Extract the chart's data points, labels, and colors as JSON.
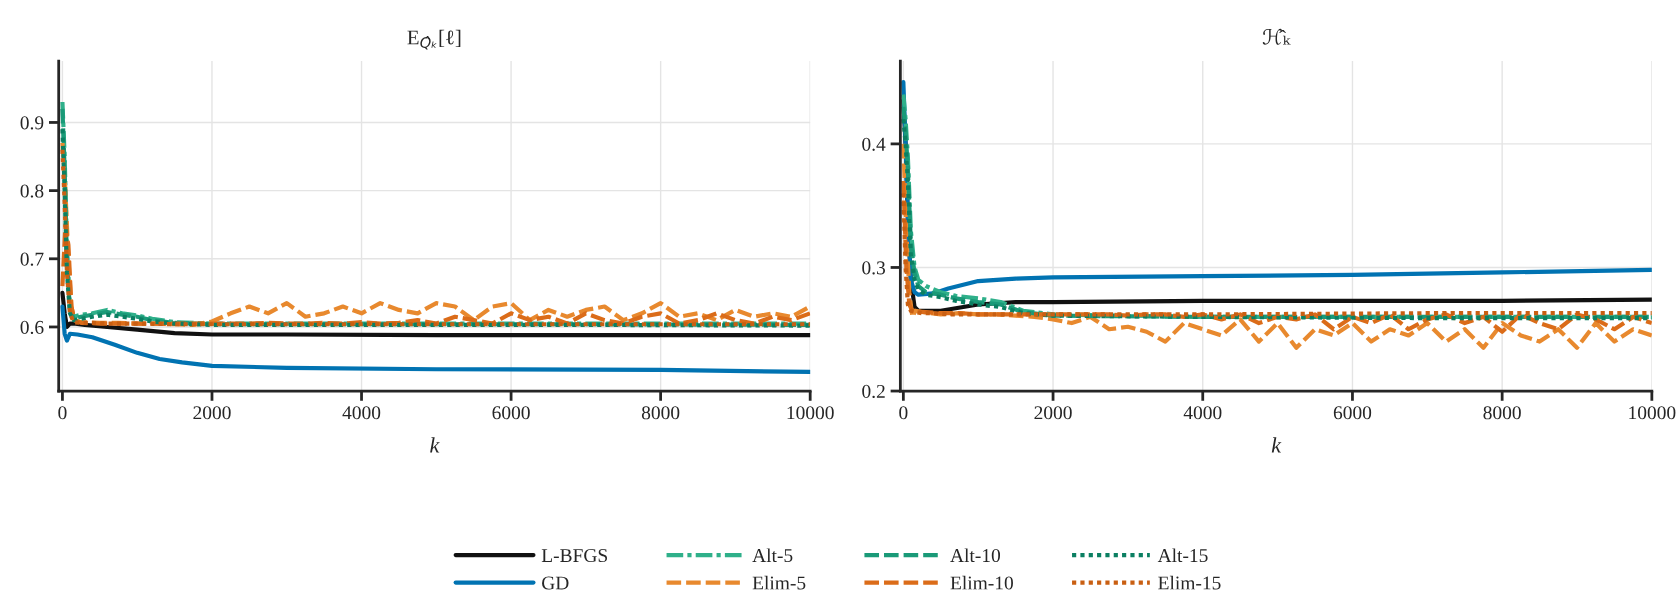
{
  "chart_data": [
    {
      "type": "line",
      "title": "E$_{Q̂ₖ}$[ℓ]",
      "xlabel": "k",
      "xlim": [
        -50,
        10000
      ],
      "xticks": [
        0,
        2000,
        4000,
        6000,
        8000,
        10000
      ],
      "ylim": [
        0.506,
        0.99
      ],
      "yticks": [
        0.6,
        0.7,
        0.8,
        0.9
      ],
      "grid": true,
      "legend": "bottom",
      "series": [
        {
          "name": "L-BFGS",
          "color": "#111111",
          "line_style": "solid",
          "x": [
            0,
            30,
            60,
            100,
            150,
            300,
            600,
            1000,
            1500,
            2000,
            3000,
            5000,
            7000,
            10000
          ],
          "values": [
            0.65,
            0.62,
            0.6,
            0.605,
            0.605,
            0.603,
            0.6,
            0.596,
            0.591,
            0.589,
            0.589,
            0.588,
            0.588,
            0.588
          ]
        },
        {
          "name": "GD",
          "color": "#0173b2",
          "line_style": "solid",
          "x": [
            0,
            30,
            60,
            100,
            200,
            400,
            700,
            1000,
            1300,
            1600,
            2000,
            3000,
            5000,
            8000,
            10000
          ],
          "values": [
            0.63,
            0.59,
            0.58,
            0.59,
            0.589,
            0.585,
            0.574,
            0.562,
            0.553,
            0.548,
            0.543,
            0.54,
            0.538,
            0.537,
            0.534
          ]
        },
        {
          "name": "Alt-5",
          "color": "#2fb08a",
          "line_style": "dashdot",
          "x": [
            0,
            30,
            60,
            100,
            150,
            250,
            400,
            600,
            800,
            1000,
            1200,
            1500,
            2000,
            4000,
            7000,
            10000
          ],
          "values": [
            0.93,
            0.85,
            0.72,
            0.63,
            0.615,
            0.618,
            0.62,
            0.625,
            0.62,
            0.617,
            0.612,
            0.607,
            0.605,
            0.605,
            0.605,
            0.605
          ]
        },
        {
          "name": "Elim-5",
          "color": "#e8892e",
          "line_style": "dashed",
          "x": [
            0,
            40,
            80,
            120,
            160,
            250,
            500,
            750,
            1000,
            1250,
            1500,
            1750,
            2000,
            2250,
            2500,
            2750,
            3000,
            3250,
            3500,
            3750,
            4000,
            4250,
            4500,
            4750,
            5000,
            5250,
            5500,
            5750,
            6000,
            6250,
            6500,
            6750,
            7000,
            7250,
            7500,
            7750,
            8000,
            8250,
            8500,
            8750,
            9000,
            9250,
            9500,
            9750,
            10000
          ],
          "values": [
            0.87,
            0.8,
            0.7,
            0.63,
            0.61,
            0.607,
            0.606,
            0.606,
            0.605,
            0.605,
            0.604,
            0.603,
            0.608,
            0.62,
            0.63,
            0.62,
            0.635,
            0.615,
            0.62,
            0.63,
            0.62,
            0.635,
            0.625,
            0.62,
            0.635,
            0.63,
            0.61,
            0.63,
            0.635,
            0.61,
            0.625,
            0.615,
            0.625,
            0.63,
            0.61,
            0.62,
            0.635,
            0.615,
            0.62,
            0.61,
            0.625,
            0.615,
            0.62,
            0.615,
            0.63
          ]
        },
        {
          "name": "Alt-10",
          "color": "#1a9a78",
          "line_style": "dashed",
          "x": [
            0,
            30,
            60,
            100,
            150,
            250,
            400,
            600,
            800,
            1000,
            1200,
            1500,
            2000,
            4000,
            7000,
            10000
          ],
          "values": [
            0.92,
            0.83,
            0.7,
            0.625,
            0.612,
            0.615,
            0.618,
            0.622,
            0.618,
            0.615,
            0.61,
            0.606,
            0.604,
            0.604,
            0.604,
            0.603
          ]
        },
        {
          "name": "Elim-10",
          "color": "#db6c19",
          "line_style": "dashed",
          "x": [
            0,
            40,
            80,
            120,
            160,
            250,
            500,
            750,
            1000,
            1250,
            1500,
            1750,
            2000,
            2250,
            2500,
            2750,
            3000,
            3250,
            3500,
            3750,
            4000,
            4250,
            4500,
            4750,
            5000,
            5250,
            5500,
            5750,
            6000,
            6250,
            6500,
            6750,
            7000,
            7250,
            7500,
            7750,
            8000,
            8250,
            8500,
            8750,
            9000,
            9250,
            9500,
            9750,
            10000
          ],
          "values": [
            0.66,
            0.75,
            0.72,
            0.63,
            0.61,
            0.606,
            0.605,
            0.605,
            0.605,
            0.605,
            0.605,
            0.605,
            0.605,
            0.605,
            0.605,
            0.606,
            0.605,
            0.605,
            0.606,
            0.605,
            0.607,
            0.605,
            0.606,
            0.61,
            0.605,
            0.615,
            0.61,
            0.605,
            0.62,
            0.61,
            0.615,
            0.605,
            0.62,
            0.61,
            0.605,
            0.615,
            0.62,
            0.605,
            0.61,
            0.62,
            0.61,
            0.605,
            0.615,
            0.61,
            0.62
          ]
        },
        {
          "name": "Alt-15",
          "color": "#0b7f62",
          "line_style": "dotted",
          "x": [
            0,
            30,
            60,
            100,
            150,
            250,
            400,
            600,
            800,
            1000,
            1200,
            1500,
            2000,
            4000,
            7000,
            10000
          ],
          "values": [
            0.89,
            0.8,
            0.68,
            0.62,
            0.61,
            0.612,
            0.615,
            0.618,
            0.615,
            0.612,
            0.608,
            0.605,
            0.603,
            0.603,
            0.603,
            0.602
          ]
        },
        {
          "name": "Elim-15",
          "color": "#c95f12",
          "line_style": "dotted",
          "x": [
            0,
            30,
            60,
            100,
            150,
            250,
            400,
            600,
            1000,
            1500,
            2000,
            4000,
            7000,
            10000
          ],
          "values": [
            0.86,
            0.78,
            0.68,
            0.62,
            0.607,
            0.606,
            0.606,
            0.605,
            0.605,
            0.604,
            0.604,
            0.604,
            0.604,
            0.604
          ]
        }
      ]
    },
    {
      "type": "line",
      "title": "ℋ̂ₖ",
      "xlabel": "k",
      "xlim": [
        -40,
        10000
      ],
      "xticks": [
        0,
        2000,
        4000,
        6000,
        8000,
        10000
      ],
      "ylim": [
        0.2,
        0.467
      ],
      "yticks": [
        0.2,
        0.3,
        0.4
      ],
      "grid": true,
      "series": [
        {
          "color": "#111111",
          "line_style": "solid",
          "x": [
            0,
            30,
            60,
            100,
            150,
            200,
            300,
            500,
            700,
            1000,
            1500,
            2000,
            4000,
            6000,
            8000,
            10000
          ],
          "values": [
            0.435,
            0.4,
            0.34,
            0.29,
            0.268,
            0.265,
            0.265,
            0.265,
            0.267,
            0.27,
            0.272,
            0.272,
            0.273,
            0.273,
            0.273,
            0.274
          ]
        },
        {
          "color": "#0173b2",
          "line_style": "solid",
          "x": [
            0,
            30,
            60,
            100,
            150,
            200,
            400,
            600,
            1000,
            1500,
            2000,
            4000,
            6000,
            8000,
            10000
          ],
          "values": [
            0.45,
            0.4,
            0.34,
            0.29,
            0.28,
            0.278,
            0.279,
            0.283,
            0.289,
            0.291,
            0.292,
            0.293,
            0.294,
            0.296,
            0.298
          ]
        },
        {
          "color": "#2fb08a",
          "line_style": "dashdot",
          "x": [
            0,
            30,
            60,
            100,
            150,
            200,
            300,
            500,
            700,
            1000,
            1300,
            1600,
            2000,
            4000,
            7000,
            10000
          ],
          "values": [
            0.44,
            0.42,
            0.39,
            0.33,
            0.3,
            0.29,
            0.285,
            0.28,
            0.277,
            0.275,
            0.272,
            0.265,
            0.262,
            0.26,
            0.26,
            0.26
          ]
        },
        {
          "color": "#e8892e",
          "line_style": "dashed",
          "x": [
            0,
            40,
            80,
            120,
            160,
            250,
            500,
            750,
            1000,
            1250,
            1500,
            1750,
            2000,
            2250,
            2500,
            2750,
            3000,
            3250,
            3500,
            3750,
            4000,
            4250,
            4500,
            4750,
            5000,
            5250,
            5500,
            5750,
            6000,
            6250,
            6500,
            6750,
            7000,
            7250,
            7500,
            7750,
            8000,
            8250,
            8500,
            8750,
            9000,
            9250,
            9500,
            9750,
            10000
          ],
          "values": [
            0.4,
            0.33,
            0.28,
            0.26,
            0.265,
            0.264,
            0.262,
            0.263,
            0.262,
            0.262,
            0.261,
            0.26,
            0.258,
            0.255,
            0.26,
            0.25,
            0.252,
            0.248,
            0.24,
            0.255,
            0.25,
            0.245,
            0.258,
            0.24,
            0.255,
            0.235,
            0.25,
            0.245,
            0.255,
            0.24,
            0.25,
            0.245,
            0.255,
            0.24,
            0.25,
            0.235,
            0.255,
            0.245,
            0.24,
            0.25,
            0.235,
            0.255,
            0.24,
            0.25,
            0.245
          ]
        },
        {
          "color": "#1a9a78",
          "line_style": "dashed",
          "x": [
            0,
            30,
            60,
            100,
            150,
            200,
            300,
            500,
            700,
            1000,
            1300,
            1600,
            2000,
            4000,
            7000,
            10000
          ],
          "values": [
            0.43,
            0.41,
            0.38,
            0.32,
            0.295,
            0.285,
            0.28,
            0.278,
            0.275,
            0.272,
            0.27,
            0.264,
            0.261,
            0.26,
            0.26,
            0.26
          ]
        },
        {
          "color": "#db6c19",
          "line_style": "dashed",
          "x": [
            0,
            40,
            80,
            120,
            160,
            250,
            500,
            750,
            1000,
            1250,
            1500,
            1750,
            2000,
            2250,
            2500,
            2750,
            3000,
            3250,
            3500,
            3750,
            4000,
            4250,
            4500,
            4750,
            5000,
            5250,
            5500,
            5750,
            6000,
            6250,
            6500,
            6750,
            7000,
            7250,
            7500,
            7750,
            8000,
            8250,
            8500,
            8750,
            9000,
            9250,
            9500,
            9750,
            10000
          ],
          "values": [
            0.37,
            0.3,
            0.27,
            0.265,
            0.265,
            0.264,
            0.263,
            0.263,
            0.262,
            0.262,
            0.262,
            0.262,
            0.262,
            0.262,
            0.262,
            0.262,
            0.261,
            0.262,
            0.262,
            0.26,
            0.262,
            0.258,
            0.262,
            0.255,
            0.26,
            0.258,
            0.262,
            0.25,
            0.26,
            0.255,
            0.262,
            0.25,
            0.258,
            0.262,
            0.255,
            0.26,
            0.248,
            0.262,
            0.255,
            0.25,
            0.262,
            0.258,
            0.25,
            0.26,
            0.255
          ]
        },
        {
          "color": "#0b7f62",
          "line_style": "dotted",
          "x": [
            0,
            30,
            60,
            100,
            150,
            200,
            300,
            500,
            700,
            1000,
            1300,
            1600,
            2000,
            4000,
            7000,
            10000
          ],
          "values": [
            0.42,
            0.4,
            0.37,
            0.31,
            0.29,
            0.282,
            0.278,
            0.276,
            0.273,
            0.27,
            0.268,
            0.263,
            0.261,
            0.26,
            0.259,
            0.259
          ]
        },
        {
          "color": "#c95f12",
          "line_style": "dotted",
          "x": [
            0,
            30,
            60,
            100,
            150,
            250,
            400,
            600,
            1000,
            1500,
            2000,
            4000,
            7000,
            10000
          ],
          "values": [
            0.36,
            0.3,
            0.27,
            0.265,
            0.264,
            0.263,
            0.263,
            0.262,
            0.262,
            0.262,
            0.262,
            0.262,
            0.263,
            0.263
          ]
        }
      ]
    }
  ]
}
